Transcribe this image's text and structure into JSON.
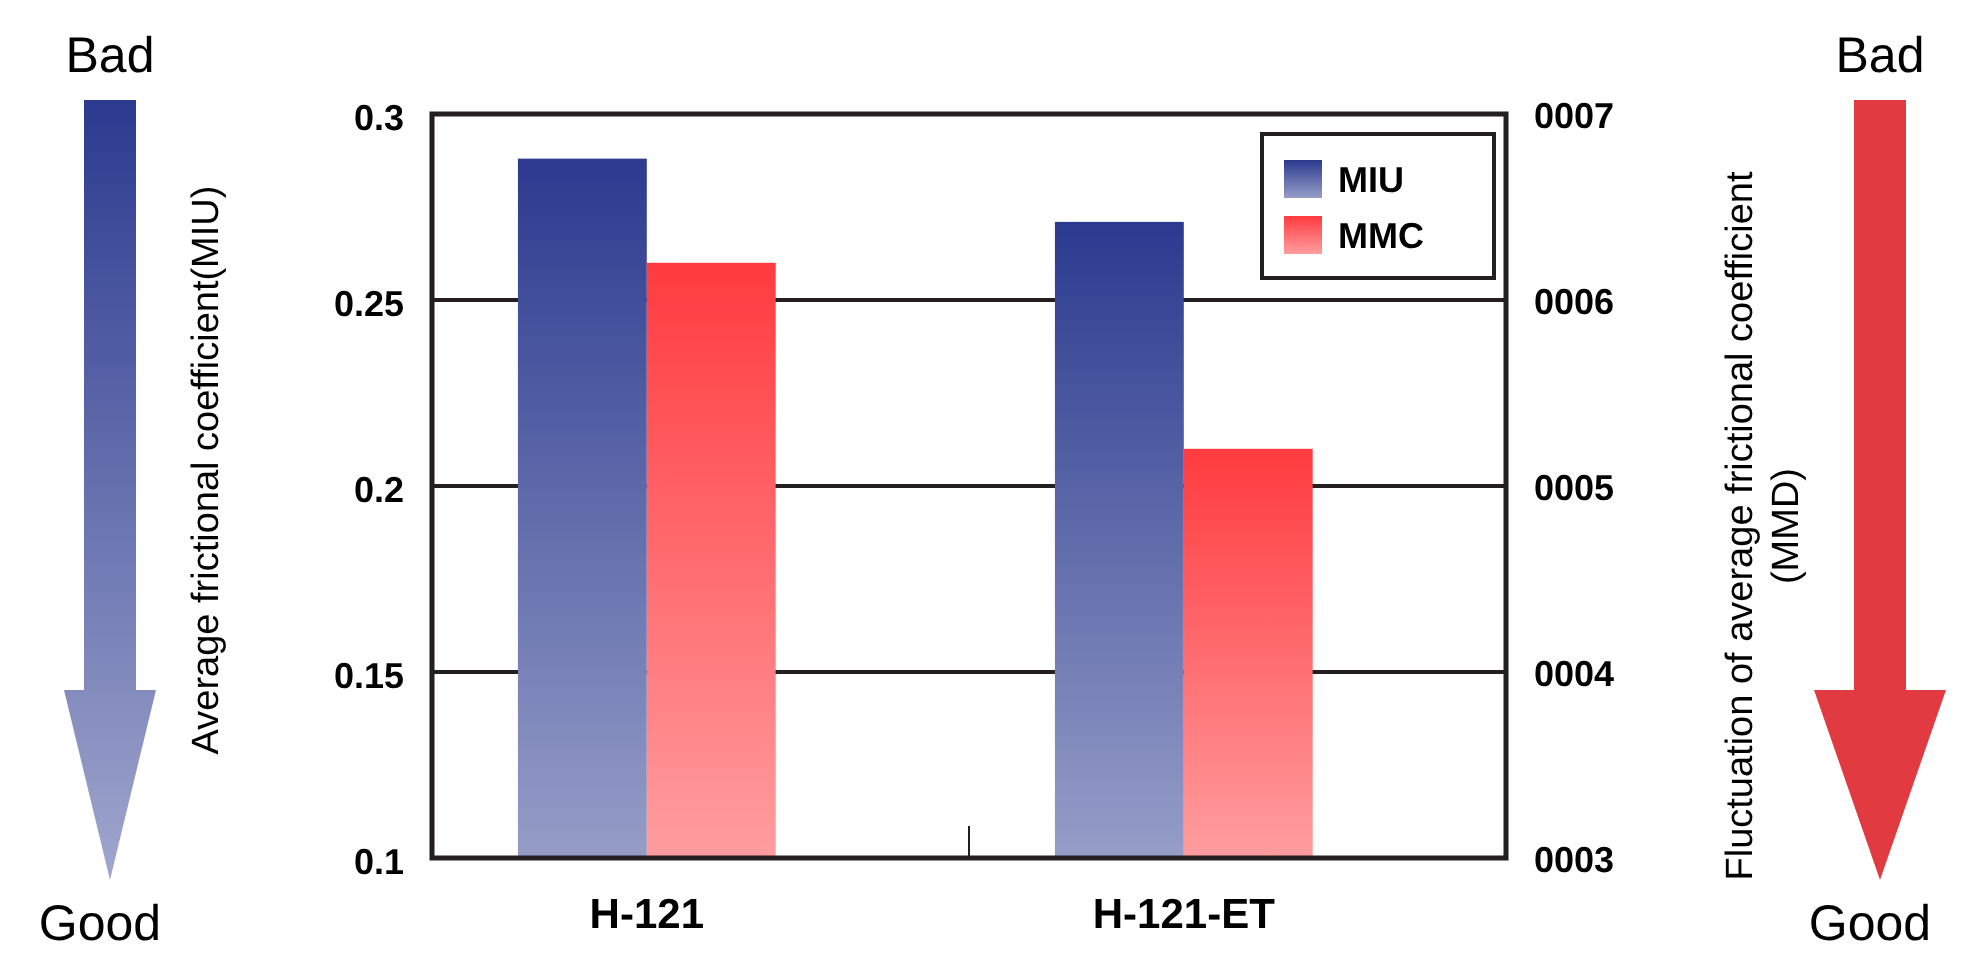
{
  "chart_data": {
    "type": "bar",
    "categories": [
      "H-121",
      "H-121-ET"
    ],
    "series": [
      {
        "name": "MIU",
        "color": "#2b3a8f",
        "values": [
          0.288,
          0.271
        ]
      },
      {
        "name": "MMC",
        "color": "#ff3b3f",
        "values": [
          6.2,
          5.2
        ],
        "axis": "y2"
      }
    ],
    "ylabel": "Average frictional coefficient(MIU)",
    "y2label": "Fluctuation of average frictional coefficient\n(MMD)",
    "ylim": [
      0.1,
      0.3
    ],
    "yticks": [
      0.1,
      0.15,
      0.2,
      0.25,
      0.3
    ],
    "y2lim": [
      3,
      7
    ],
    "y2ticks": [
      {
        "value": 3,
        "label": "0003"
      },
      {
        "value": 4,
        "label": "0004"
      },
      {
        "value": 5,
        "label": "0005"
      },
      {
        "value": 6,
        "label": "0006"
      },
      {
        "value": 7,
        "label": "0007"
      }
    ],
    "annotations": [
      "Bad",
      "Good",
      "Bad",
      "Good"
    ],
    "grid": "y",
    "legend": "top right"
  }
}
